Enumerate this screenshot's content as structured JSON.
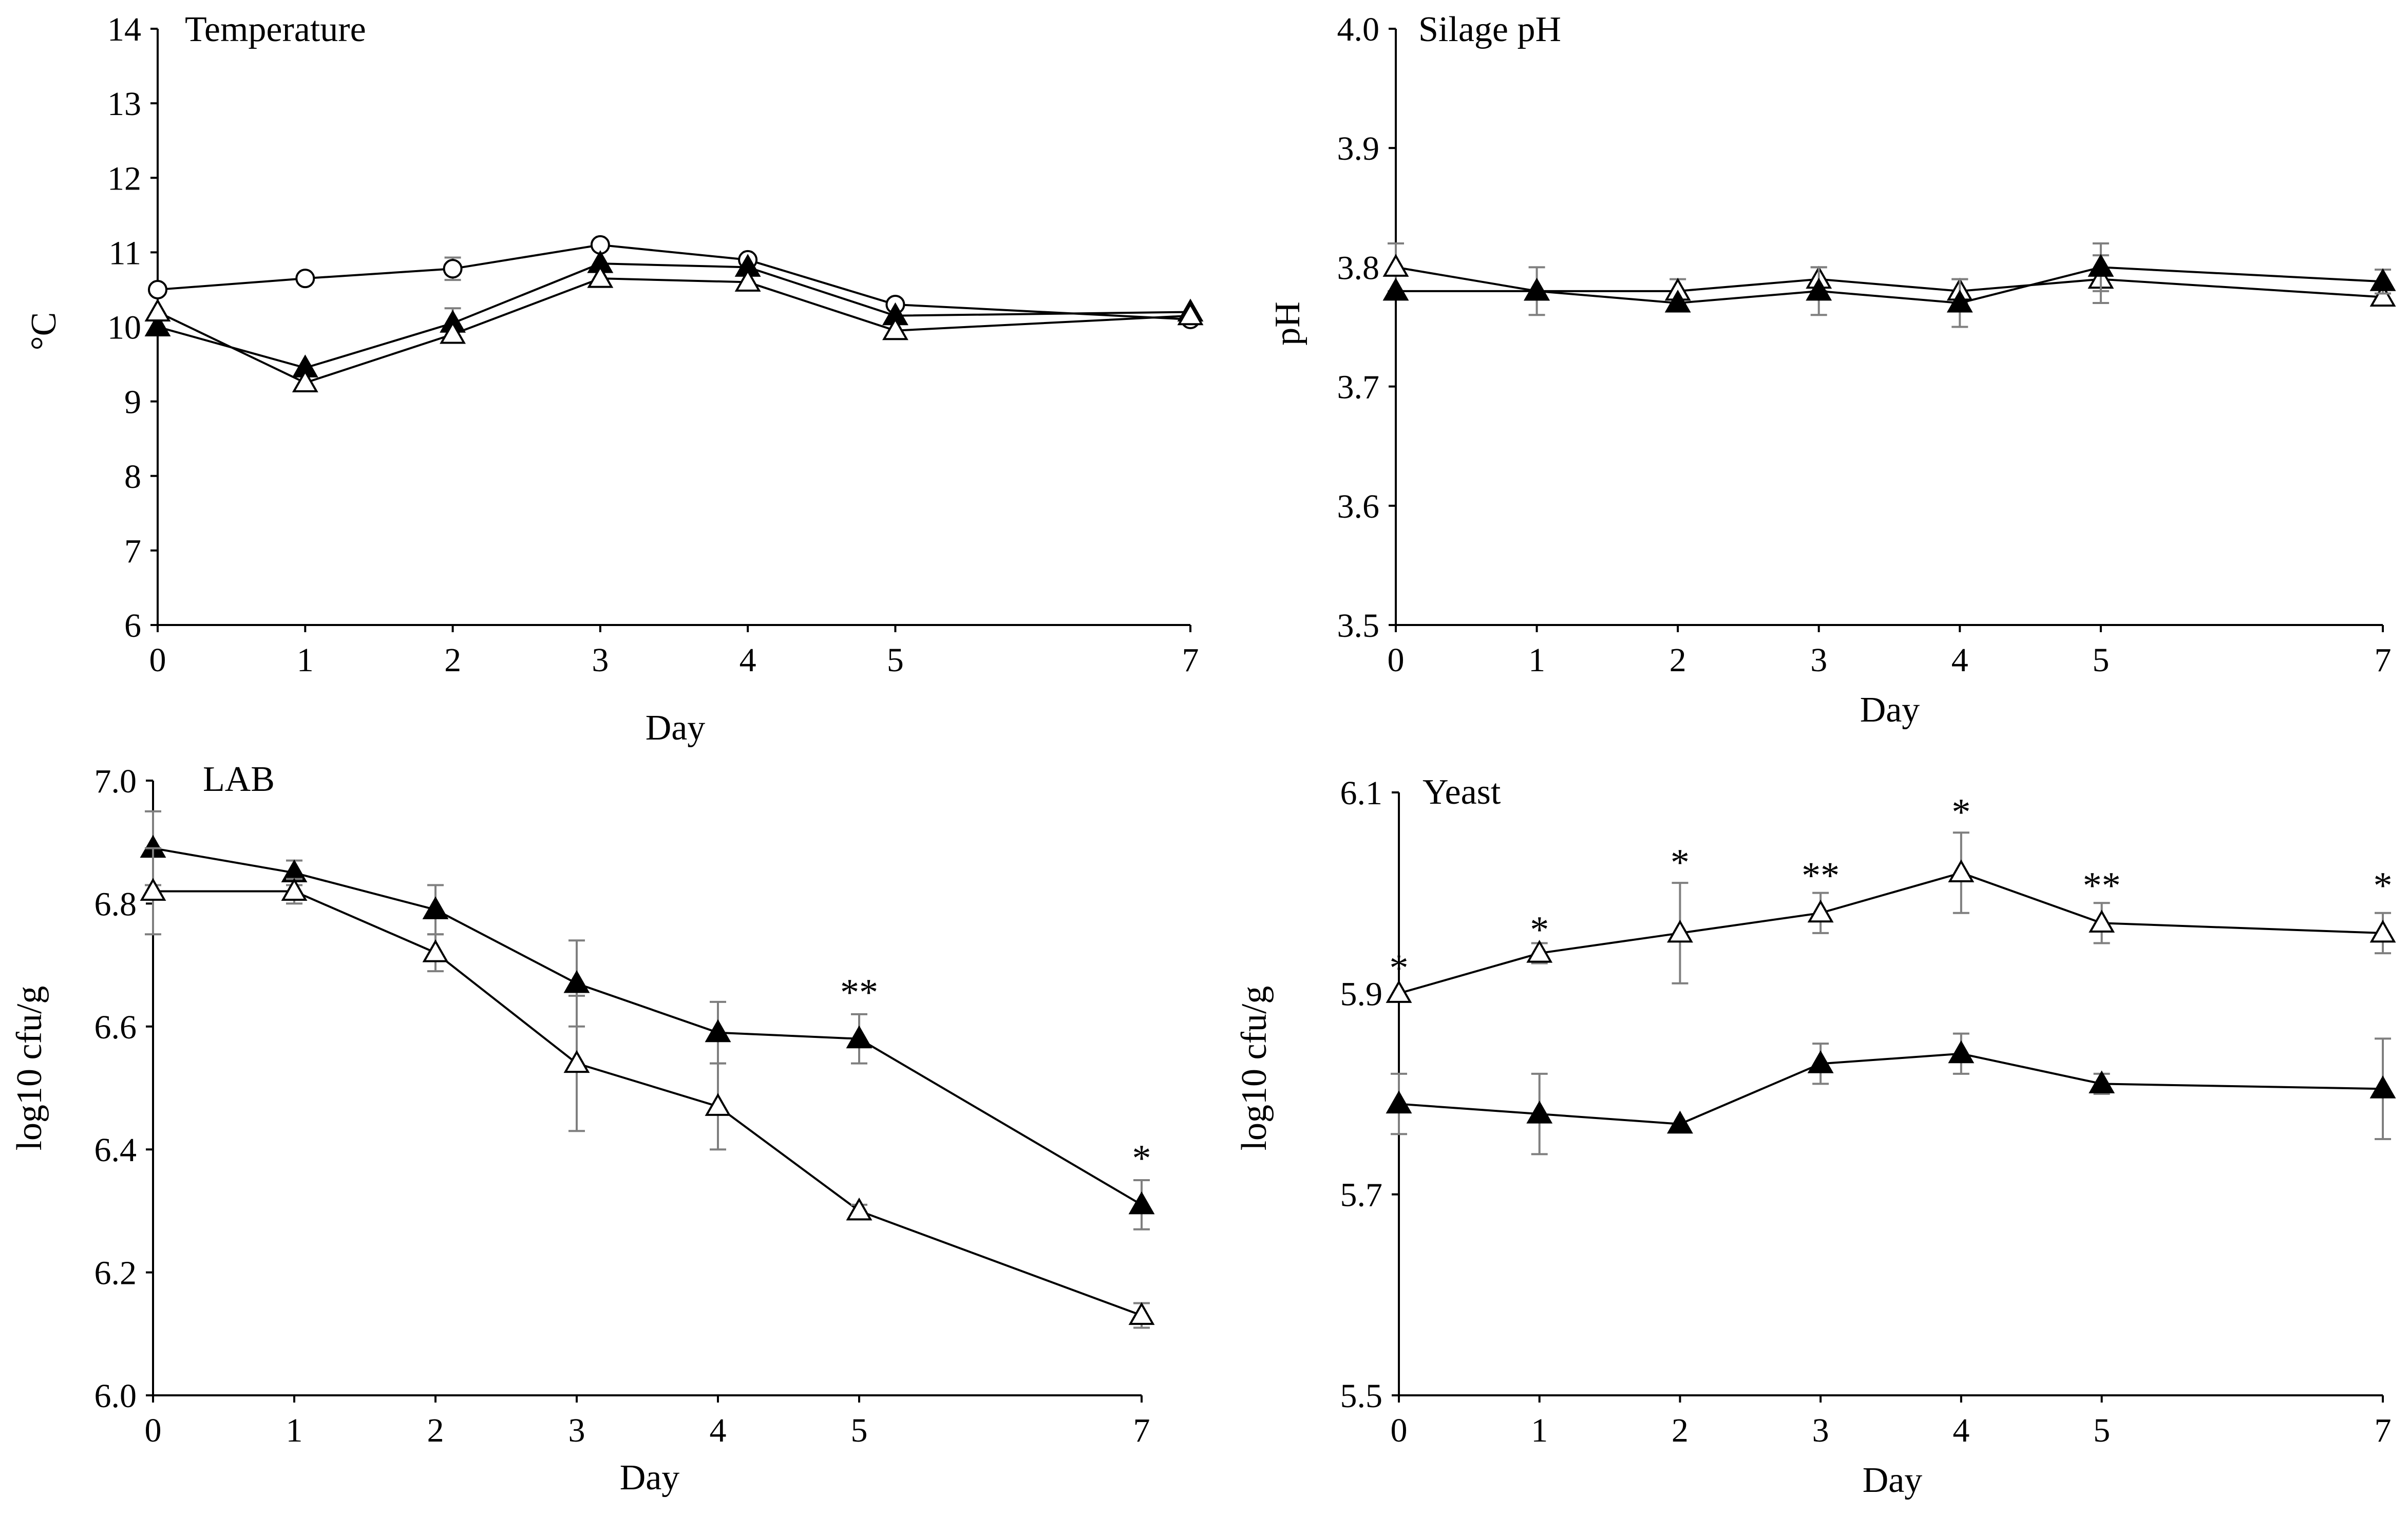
{
  "chart_data": [
    {
      "id": "temperature",
      "type": "line",
      "title": "Temperature",
      "xlabel": "Day",
      "ylabel": "°C",
      "x": [
        0,
        1,
        2,
        3,
        4,
        5,
        7
      ],
      "xticks": [
        "0",
        "1",
        "2",
        "3",
        "4",
        "5",
        "7"
      ],
      "ylim": [
        6,
        14
      ],
      "yticks": [
        "6",
        "7",
        "8",
        "9",
        "10",
        "11",
        "12",
        "13",
        "14"
      ],
      "series": [
        {
          "name": "open-circle",
          "marker": "circle-open",
          "values": [
            10.5,
            10.65,
            10.78,
            11.1,
            10.9,
            10.3,
            10.1
          ],
          "errors": [
            0,
            0,
            0.15,
            0,
            0,
            0,
            0
          ]
        },
        {
          "name": "filled-triangle",
          "marker": "triangle-filled",
          "values": [
            10.0,
            9.45,
            10.05,
            10.85,
            10.8,
            10.15,
            10.2
          ],
          "errors": [
            0,
            0,
            0.2,
            0,
            0,
            0,
            0
          ]
        },
        {
          "name": "open-triangle",
          "marker": "triangle-open",
          "values": [
            10.2,
            9.25,
            9.9,
            10.65,
            10.6,
            9.95,
            10.15
          ],
          "errors": [
            0,
            0,
            0,
            0,
            0,
            0,
            0
          ]
        }
      ],
      "annotations": []
    },
    {
      "id": "silage-ph",
      "type": "line",
      "title": "Silage pH",
      "xlabel": "Day",
      "ylabel": "pH",
      "x": [
        0,
        1,
        2,
        3,
        4,
        5,
        7
      ],
      "xticks": [
        "0",
        "1",
        "2",
        "3",
        "4",
        "5",
        "7"
      ],
      "ylim": [
        3.5,
        4.0
      ],
      "yticks": [
        "3.5",
        "3.6",
        "3.7",
        "3.8",
        "3.9",
        "4.0"
      ],
      "series": [
        {
          "name": "open-triangle",
          "marker": "triangle-open",
          "values": [
            3.8,
            3.78,
            3.78,
            3.79,
            3.78,
            3.79,
            3.775
          ],
          "errors": [
            0.02,
            0,
            0.01,
            0.01,
            0.01,
            0.02,
            0
          ]
        },
        {
          "name": "filled-triangle",
          "marker": "triangle-filled",
          "values": [
            3.78,
            3.78,
            3.77,
            3.78,
            3.77,
            3.8,
            3.788
          ],
          "errors": [
            0,
            0.02,
            0,
            0.02,
            0.02,
            0.02,
            0.01
          ]
        }
      ],
      "annotations": []
    },
    {
      "id": "lab",
      "type": "line",
      "title": "LAB",
      "xlabel": "Day",
      "ylabel": "log10 cfu/g",
      "x": [
        0,
        1,
        2,
        3,
        4,
        5,
        7
      ],
      "xticks": [
        "0",
        "1",
        "2",
        "3",
        "4",
        "5",
        "7"
      ],
      "ylim": [
        6.0,
        7.0
      ],
      "yticks": [
        "6.0",
        "6.2",
        "6.4",
        "6.6",
        "6.8",
        "7.0"
      ],
      "series": [
        {
          "name": "filled-triangle",
          "marker": "triangle-filled",
          "values": [
            6.89,
            6.85,
            6.79,
            6.67,
            6.59,
            6.58,
            6.31
          ],
          "errors": [
            0.06,
            0.02,
            0.04,
            0.07,
            0.05,
            0.04,
            0.04
          ]
        },
        {
          "name": "open-triangle",
          "marker": "triangle-open",
          "values": [
            6.82,
            6.82,
            6.72,
            6.54,
            6.47,
            6.3,
            6.13
          ],
          "errors": [
            0.07,
            0.02,
            0.03,
            0.11,
            0.07,
            0.01,
            0.02
          ]
        }
      ],
      "annotations": [
        {
          "x": 5,
          "y": 6.655,
          "text": "**"
        },
        {
          "x": 7,
          "y": 6.385,
          "text": "*"
        }
      ]
    },
    {
      "id": "yeast",
      "type": "line",
      "title": "Yeast",
      "xlabel": "Day",
      "ylabel": "log10 cfu/g",
      "x": [
        0,
        1,
        2,
        3,
        4,
        5,
        7
      ],
      "xticks": [
        "0",
        "1",
        "2",
        "3",
        "4",
        "5",
        "7"
      ],
      "ylim": [
        5.5,
        6.1
      ],
      "yticks": [
        "5.5",
        "5.7",
        "5.9",
        "6.1"
      ],
      "series": [
        {
          "name": "open-triangle",
          "marker": "triangle-open",
          "values": [
            5.9,
            5.94,
            5.96,
            5.98,
            6.02,
            5.97,
            5.96
          ],
          "errors": [
            0,
            0.01,
            0.05,
            0.02,
            0.04,
            0.02,
            0.02
          ]
        },
        {
          "name": "filled-triangle",
          "marker": "triangle-filled",
          "values": [
            5.79,
            5.78,
            5.77,
            5.83,
            5.84,
            5.81,
            5.805
          ],
          "errors": [
            0.03,
            0.04,
            0,
            0.02,
            0.02,
            0.01,
            0.05
          ]
        }
      ],
      "annotations": [
        {
          "x": 0,
          "y": 5.925,
          "text": "*"
        },
        {
          "x": 1,
          "y": 5.963,
          "text": "*"
        },
        {
          "x": 2,
          "y": 6.03,
          "text": "*"
        },
        {
          "x": 3,
          "y": 6.017,
          "text": "**"
        },
        {
          "x": 4,
          "y": 6.08,
          "text": "*"
        },
        {
          "x": 5,
          "y": 6.007,
          "text": "**"
        },
        {
          "x": 7,
          "y": 6.007,
          "text": "*"
        }
      ]
    }
  ]
}
